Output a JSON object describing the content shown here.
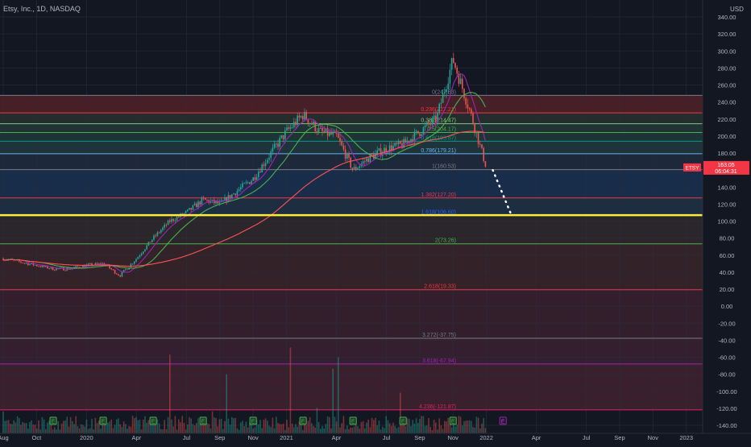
{
  "header": {
    "symbol_title": "Etsy, Inc., 1D, NASDAQ",
    "currency": "USD"
  },
  "colors": {
    "background": "#131722",
    "grid": "#2a2e39",
    "axis_text": "#b2b5be",
    "candle_up": "#26a69a",
    "candle_down": "#ef5350",
    "ma_fast": "#9c27b0",
    "ma_mid": "#4caf50",
    "ma_slow": "#ff5252",
    "highlight_line": "#ffeb3b",
    "projection": "#ffffff",
    "badge_bg": "#f23645",
    "earnings": "#4caf50"
  },
  "price_badge": {
    "symbol": "ETSY",
    "price": "163.05",
    "countdown": "06:04:31"
  },
  "chart_data": {
    "type": "candlestick",
    "title": "Etsy, Inc., 1D, NASDAQ",
    "ylabel": "USD",
    "grid": true,
    "ylim": [
      -145,
      352
    ],
    "y_ticks": [
      "340.00",
      "320.00",
      "300.00",
      "280.00",
      "260.00",
      "240.00",
      "220.00",
      "200.00",
      "180.00",
      "160.00",
      "140.00",
      "120.00",
      "100.00",
      "80.00",
      "60.00",
      "40.00",
      "20.00",
      "0.00",
      "-20.00",
      "-40.00",
      "-60.00",
      "-80.00",
      "-100.00",
      "-120.00",
      "-140.00"
    ],
    "x_ticks": [
      "Aug",
      "Oct",
      "2020",
      "Apr",
      "Jul",
      "Sep",
      "Nov",
      "2021",
      "Apr",
      "Jul",
      "Sep",
      "Nov",
      "2022",
      "Apr",
      "Jul",
      "Sep",
      "Nov",
      "2023"
    ],
    "price_path": [
      [
        "2019-08",
        56
      ],
      [
        "2019-09",
        52
      ],
      [
        "2019-10",
        48
      ],
      [
        "2019-11",
        44
      ],
      [
        "2019-12",
        44
      ],
      [
        "2020-01",
        48
      ],
      [
        "2020-02",
        50
      ],
      [
        "2020-03",
        36
      ],
      [
        "2020-04",
        56
      ],
      [
        "2020-05",
        80
      ],
      [
        "2020-06",
        100
      ],
      [
        "2020-07",
        110
      ],
      [
        "2020-08",
        125
      ],
      [
        "2020-09",
        120
      ],
      [
        "2020-10",
        135
      ],
      [
        "2020-11",
        150
      ],
      [
        "2020-12",
        178
      ],
      [
        "2021-01",
        205
      ],
      [
        "2021-02",
        225
      ],
      [
        "2021-03",
        205
      ],
      [
        "2021-04",
        200
      ],
      [
        "2021-05",
        160
      ],
      [
        "2021-06",
        175
      ],
      [
        "2021-07",
        185
      ],
      [
        "2021-08",
        190
      ],
      [
        "2021-09",
        205
      ],
      [
        "2021-10",
        220
      ],
      [
        "2021-11",
        290
      ],
      [
        "2021-12",
        230
      ],
      [
        "2022-01",
        163
      ]
    ],
    "projection": {
      "from": [
        "2022-01",
        160
      ],
      "to": [
        "2022-02",
        108
      ],
      "style": "dotted"
    },
    "horizontal_line": {
      "value": 107,
      "color": "#ffeb3b"
    },
    "fibonacci": [
      {
        "label": "0(247.83)",
        "value": 247.83,
        "color": "#787b86"
      },
      {
        "label": "0.236(227.21)",
        "value": 227.21,
        "color": "#f23645"
      },
      {
        "label": "0.382(214.47)",
        "value": 214.47,
        "color": "#81c784"
      },
      {
        "label": "0.5(204.17)",
        "value": 204.17,
        "color": "#4caf50"
      },
      {
        "label": "0.618(193.87)",
        "value": 193.87,
        "color": "#089981"
      },
      {
        "label": "0.786(179.21)",
        "value": 179.21,
        "color": "#64b5f6"
      },
      {
        "label": "1(160.53)",
        "value": 160.53,
        "color": "#787b86"
      },
      {
        "label": "1.382(127.20)",
        "value": 127.2,
        "color": "#f23645"
      },
      {
        "label": "1.618(106.60)",
        "value": 106.6,
        "color": "#2962ff"
      },
      {
        "label": "2(73.26)",
        "value": 73.26,
        "color": "#4caf50"
      },
      {
        "label": "2.618(19.33)",
        "value": 19.33,
        "color": "#f23645"
      },
      {
        "label": "3.272(-37.75)",
        "value": -37.75,
        "color": "#787b86"
      },
      {
        "label": "3.618(-67.94)",
        "value": -67.94,
        "color": "#9c27b0"
      },
      {
        "label": "4.236(-121.87)",
        "value": -121.87,
        "color": "#e91e63"
      }
    ],
    "earnings_markers": [
      "2019-11",
      "2020-02",
      "2020-05",
      "2020-08",
      "2020-11",
      "2021-02",
      "2021-05",
      "2021-08",
      "2021-11",
      "2022-02"
    ]
  }
}
